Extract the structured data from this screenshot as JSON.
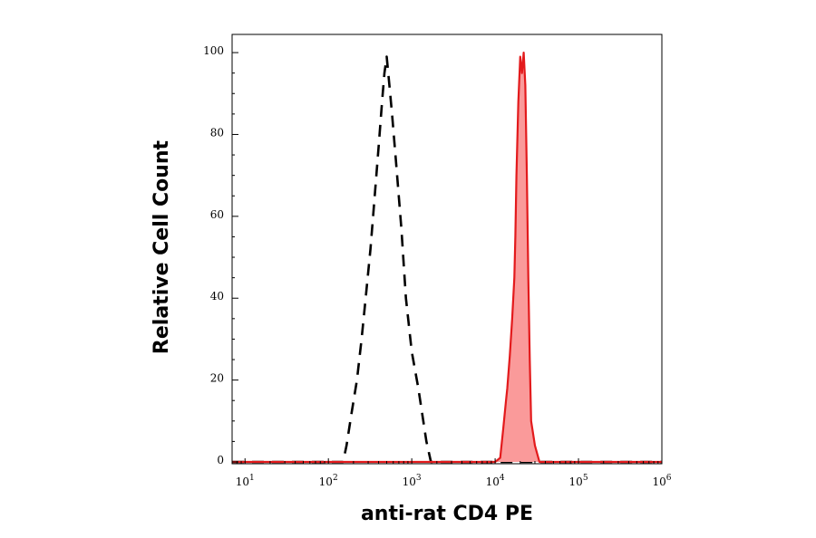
{
  "chart_data": {
    "type": "area",
    "title": "",
    "xlabel": "anti-rat CD4 PE",
    "ylabel": "Relative Cell Count",
    "x_scale": "log",
    "xlim": [
      7,
      1000000
    ],
    "ylim": [
      0,
      104
    ],
    "x_ticks": [
      {
        "base": "10",
        "exp": "1",
        "value": 10
      },
      {
        "base": "10",
        "exp": "2",
        "value": 100
      },
      {
        "base": "10",
        "exp": "3",
        "value": 1000
      },
      {
        "base": "10",
        "exp": "4",
        "value": 10000
      },
      {
        "base": "10",
        "exp": "5",
        "value": 100000
      },
      {
        "base": "10",
        "exp": "6",
        "value": 1000000
      }
    ],
    "y_ticks": [
      {
        "label": "0",
        "value": 0
      },
      {
        "label": "20",
        "value": 20
      },
      {
        "label": "40",
        "value": 40
      },
      {
        "label": "60",
        "value": 60
      },
      {
        "label": "80",
        "value": 80
      },
      {
        "label": "100",
        "value": 100
      }
    ],
    "grid": false,
    "legend": "none",
    "series": [
      {
        "style": "dashed",
        "color": "#000000",
        "x": [
          7,
          150,
          165,
          190,
          220,
          250,
          280,
          320,
          360,
          400,
          440,
          470,
          500,
          540,
          580,
          650,
          750,
          850,
          1000,
          1200,
          1500,
          1700,
          1800,
          1000000
        ],
        "y": [
          0,
          0,
          4,
          12,
          20,
          30,
          40,
          52,
          65,
          77,
          88,
          95,
          99,
          92,
          85,
          73,
          57,
          40,
          27,
          18,
          5,
          0,
          0,
          0
        ]
      },
      {
        "style": "filled",
        "color": "#e31a1c",
        "fill": "#fa9a9a",
        "x": [
          7,
          10000,
          11500,
          12500,
          13500,
          14000,
          15000,
          16000,
          17000,
          17500,
          18000,
          19000,
          20000,
          21000,
          22000,
          23000,
          24000,
          25000,
          26000,
          27000,
          30000,
          34000,
          37000,
          1000000
        ],
        "y": [
          0,
          0,
          1,
          8,
          15,
          18,
          26,
          35,
          45,
          55,
          70,
          88,
          99,
          95,
          100,
          92,
          70,
          45,
          25,
          10,
          4,
          0,
          0,
          0
        ]
      }
    ]
  }
}
